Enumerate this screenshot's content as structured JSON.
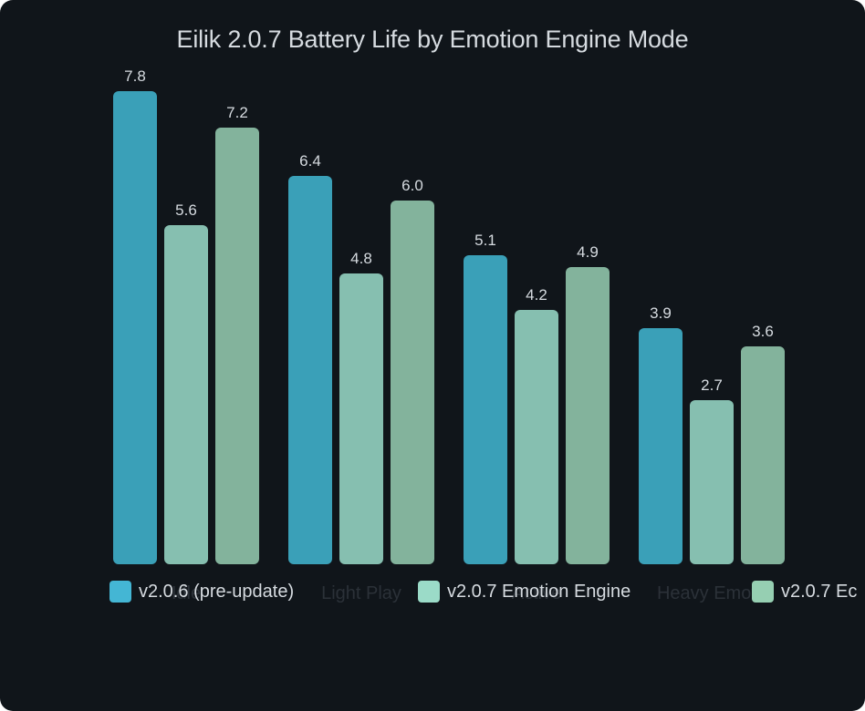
{
  "chart_data": {
    "type": "bar",
    "title": "Eilik 2.0.7 Battery Life by Emotion Engine Mode",
    "xlabel": "",
    "ylabel": "",
    "categories": [
      "Idle",
      "Light Play",
      "Active",
      "Heavy Emote"
    ],
    "series": [
      {
        "name": "v2.0.6 (pre-update)",
        "values": [
          7.8,
          6.4,
          5.1,
          3.9
        ],
        "color": "#3aa0b8",
        "legend_color": "#44b6d4"
      },
      {
        "name": "v2.0.7 Emotion Engine",
        "values": [
          5.6,
          4.8,
          4.2,
          2.7
        ],
        "color": "#86bfb0",
        "legend_color": "#9bdbc8"
      },
      {
        "name": "v2.0.7 Ec",
        "values": [
          7.2,
          6.0,
          4.9,
          3.6
        ],
        "color": "#83b39c",
        "legend_color": "#96cfb2"
      }
    ],
    "data_labels": true,
    "grid": false,
    "legend_position": "bottom",
    "ylim": [
      0,
      8
    ]
  },
  "labels": {
    "title": "Eilik 2.0.7 Battery Life by Emotion Engine Mode",
    "categories": [
      "Idle",
      "Light Play",
      "Active",
      "Heavy Emote"
    ],
    "legend": [
      "v2.0.6 (pre-update)",
      "v2.0.7 Emotion Engine",
      "v2.0.7 Ec"
    ],
    "values": [
      [
        "7.8",
        "5.6",
        "7.2"
      ],
      [
        "6.4",
        "4.8",
        "6.0"
      ],
      [
        "5.1",
        "4.2",
        "4.9"
      ],
      [
        "3.9",
        "2.7",
        "3.6"
      ]
    ]
  }
}
